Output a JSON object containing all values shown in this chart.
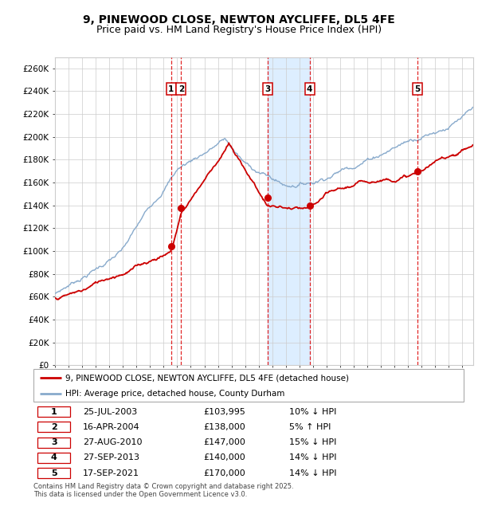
{
  "title": "9, PINEWOOD CLOSE, NEWTON AYCLIFFE, DL5 4FE",
  "subtitle": "Price paid vs. HM Land Registry's House Price Index (HPI)",
  "yticks": [
    0,
    20000,
    40000,
    60000,
    80000,
    100000,
    120000,
    140000,
    160000,
    180000,
    200000,
    220000,
    240000,
    260000
  ],
  "ylim": [
    0,
    270000
  ],
  "xlim_start": 1995.0,
  "xlim_end": 2025.8,
  "sale_dates": [
    2003.56,
    2004.29,
    2010.65,
    2013.75,
    2021.71
  ],
  "sale_prices": [
    103995,
    138000,
    147000,
    140000,
    170000
  ],
  "sale_labels": [
    "1",
    "2",
    "3",
    "4",
    "5"
  ],
  "vline_dates": [
    2003.56,
    2004.29,
    2010.65,
    2013.75,
    2021.71
  ],
  "shade_regions": [
    [
      2010.65,
      2013.75
    ]
  ],
  "red_line_color": "#cc0000",
  "blue_line_color": "#88aacc",
  "shade_color": "#ddeeff",
  "grid_color": "#cccccc",
  "vline_color": "#dd0000",
  "legend_entries": [
    "9, PINEWOOD CLOSE, NEWTON AYCLIFFE, DL5 4FE (detached house)",
    "HPI: Average price, detached house, County Durham"
  ],
  "table_rows": [
    [
      "1",
      "25-JUL-2003",
      "£103,995",
      "10% ↓ HPI"
    ],
    [
      "2",
      "16-APR-2004",
      "£138,000",
      "5% ↑ HPI"
    ],
    [
      "3",
      "27-AUG-2010",
      "£147,000",
      "15% ↓ HPI"
    ],
    [
      "4",
      "27-SEP-2013",
      "£140,000",
      "14% ↓ HPI"
    ],
    [
      "5",
      "17-SEP-2021",
      "£170,000",
      "14% ↓ HPI"
    ]
  ],
  "footnote": "Contains HM Land Registry data © Crown copyright and database right 2025.\nThis data is licensed under the Open Government Licence v3.0.",
  "title_fontsize": 10,
  "subtitle_fontsize": 9
}
